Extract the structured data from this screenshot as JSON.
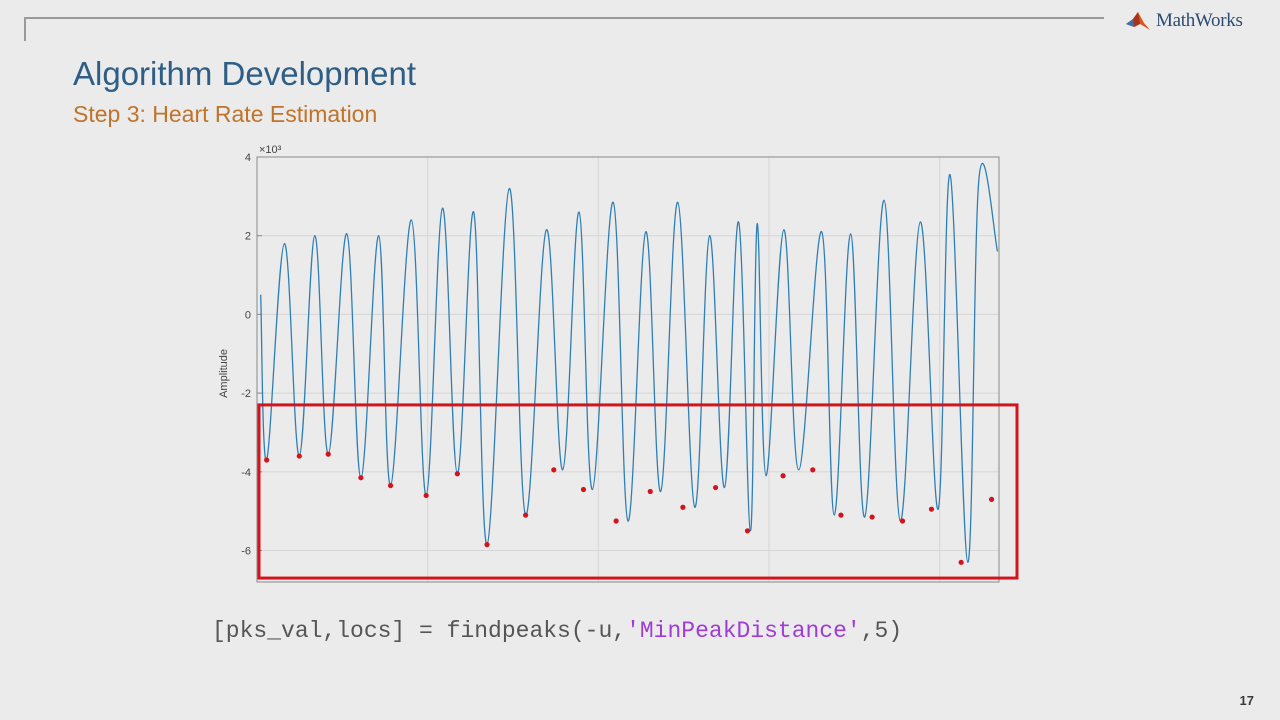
{
  "slide": {
    "title": "Algorithm Development",
    "subtitle": "Step 3: Heart Rate Estimation",
    "number": "17",
    "logo": {
      "icon": "matlab-membrane-icon",
      "text": "MathWorks"
    },
    "code": {
      "prefix": "[pks_val,locs] = findpeaks(-u,",
      "string_arg": "'MinPeakDistance'",
      "suffix": ",5)"
    }
  },
  "colors": {
    "title": "#2e5e85",
    "subtitle": "#c0732b",
    "signal": "#2f7fb5",
    "peak_marker": "#d4141c",
    "highlight_box": "#d4141c",
    "string_literal": "#a03cd4"
  },
  "chart_data": {
    "type": "line",
    "ylabel": "Amplitude",
    "xlabel": "",
    "title": "",
    "y_exponent_label": "×10³",
    "ylim": [
      -6.8,
      4
    ],
    "xlim": [
      0,
      1
    ],
    "yticks": [
      "4",
      "2",
      "0",
      "-2",
      "-4",
      "-6"
    ],
    "ytick_values": [
      4,
      2,
      0,
      -2,
      -4,
      -6
    ],
    "grid": true,
    "highlight_box": {
      "ymin": -6.7,
      "ymax": -2.3,
      "description": "detected minima"
    },
    "series": [
      {
        "type": "line",
        "x": [
          0.005,
          0.013,
          0.037,
          0.057,
          0.078,
          0.096,
          0.121,
          0.14,
          0.164,
          0.18,
          0.208,
          0.228,
          0.25,
          0.27,
          0.292,
          0.31,
          0.34,
          0.362,
          0.39,
          0.412,
          0.434,
          0.452,
          0.48,
          0.5,
          0.524,
          0.544,
          0.567,
          0.59,
          0.61,
          0.63,
          0.649,
          0.665,
          0.674,
          0.686,
          0.71,
          0.73,
          0.761,
          0.778,
          0.8,
          0.819,
          0.845,
          0.867,
          0.894,
          0.918,
          0.934,
          0.958,
          0.973,
          0.998
        ],
        "y": [
          0.5,
          -3.7,
          1.8,
          -3.6,
          2.0,
          -3.55,
          2.05,
          -4.15,
          2.0,
          -4.35,
          2.4,
          -4.6,
          2.7,
          -4.05,
          2.6,
          -5.85,
          3.2,
          -5.1,
          2.15,
          -3.95,
          2.6,
          -4.45,
          2.85,
          -5.25,
          2.1,
          -4.5,
          2.85,
          -4.9,
          2.0,
          -4.4,
          2.35,
          -5.5,
          2.3,
          -4.1,
          2.15,
          -3.95,
          2.1,
          -5.1,
          2.05,
          -5.15,
          2.9,
          -5.25,
          2.35,
          -4.95,
          3.55,
          -6.3,
          3.45,
          1.6
        ]
      },
      {
        "type": "scatter",
        "name": "",
        "x": [
          0.013,
          0.057,
          0.096,
          0.14,
          0.18,
          0.228,
          0.27,
          0.31,
          0.362,
          0.4,
          0.44,
          0.484,
          0.53,
          0.574,
          0.618,
          0.661,
          0.709,
          0.749,
          0.787,
          0.829,
          0.87,
          0.909,
          0.949,
          0.99
        ],
        "y": [
          -3.7,
          -3.6,
          -3.55,
          -4.15,
          -4.35,
          -4.6,
          -4.05,
          -5.85,
          -5.1,
          -3.95,
          -4.45,
          -5.25,
          -4.5,
          -4.9,
          -4.4,
          -5.5,
          -4.1,
          -3.95,
          -5.1,
          -5.15,
          -5.25,
          -4.95,
          -6.3,
          -4.7
        ]
      }
    ]
  }
}
